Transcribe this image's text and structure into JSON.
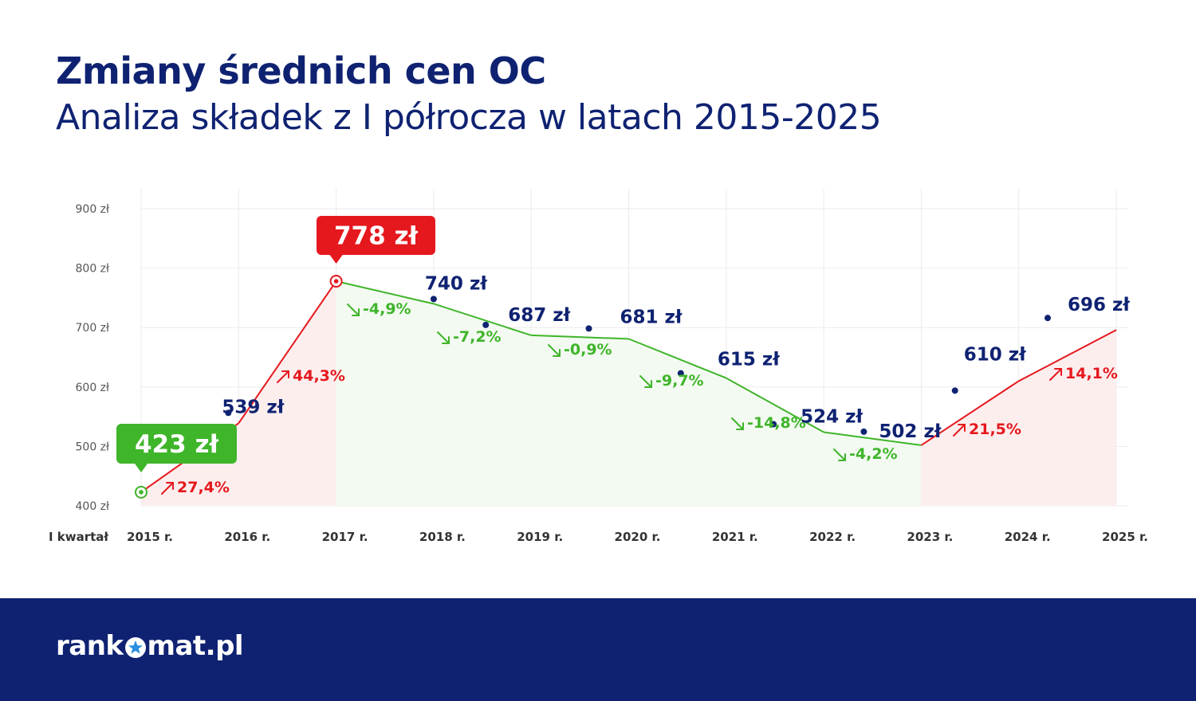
{
  "header": {
    "title": "Zmiany średnich cen OC",
    "subtitle": "Analiza składek z I półrocza w latach 2015-2025"
  },
  "footer": {
    "logo_left": "rank",
    "logo_right": "mat.pl",
    "logo_star_icon": "star-icon"
  },
  "colors": {
    "navy": "#0f2272",
    "green": "#3fb52a",
    "red": "#e5181e",
    "green_fill": "#f3faf1",
    "red_fill": "#fdeeee"
  },
  "chart_data": {
    "type": "line",
    "title": "",
    "xlabel": "I kwartał",
    "ylabel": "",
    "x_categories": [
      "2015 r.",
      "2016 r.",
      "2017 r.",
      "2018 r.",
      "2019 r.",
      "2020 r.",
      "2021 r.",
      "2022 r.",
      "2023 r.",
      "2024 r.",
      "2025 r."
    ],
    "y_ticks": [
      {
        "value": 400,
        "label": "400 zł"
      },
      {
        "value": 500,
        "label": "500 zł"
      },
      {
        "value": 600,
        "label": "600 zł"
      },
      {
        "value": 700,
        "label": "700 zł"
      },
      {
        "value": 800,
        "label": "800 zł"
      },
      {
        "value": 900,
        "label": "900 zł"
      }
    ],
    "ylim": [
      400,
      900
    ],
    "grid": true,
    "values": [
      423,
      539,
      778,
      740,
      687,
      681,
      615,
      524,
      502,
      610,
      696
    ],
    "value_labels": [
      "423 zł",
      "539 zł",
      "778 zł",
      "740 zł",
      "687 zł",
      "681 zł",
      "615 zł",
      "524 zł",
      "502 zł",
      "610 zł",
      "696 zł"
    ],
    "changes": [
      {
        "label": "27,4%",
        "direction": "up"
      },
      {
        "label": "44,3%",
        "direction": "up"
      },
      {
        "label": "-4,9%",
        "direction": "down"
      },
      {
        "label": "-7,2%",
        "direction": "down"
      },
      {
        "label": "-0,9%",
        "direction": "down"
      },
      {
        "label": "-9,7%",
        "direction": "down"
      },
      {
        "label": "-14,8%",
        "direction": "down"
      },
      {
        "label": "-4,2%",
        "direction": "down"
      },
      {
        "label": "21,5%",
        "direction": "up"
      },
      {
        "label": "14,1%",
        "direction": "up"
      }
    ],
    "highlight_min": {
      "index": 0,
      "label": "423 zł"
    },
    "highlight_max": {
      "index": 2,
      "label": "778 zł"
    }
  }
}
